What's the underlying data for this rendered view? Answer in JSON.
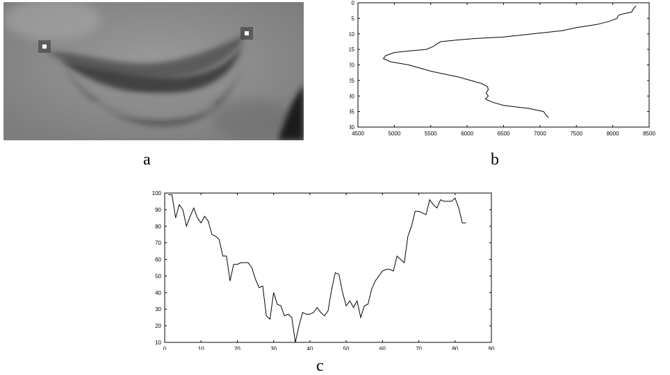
{
  "colors": {
    "line": "#000000",
    "axis": "#000000",
    "background": "#ffffff"
  },
  "panels": {
    "a": {
      "caption": "a",
      "content": "grayscale mouth image with two white marker points"
    },
    "b": {
      "caption": "b"
    },
    "c": {
      "caption": "c"
    }
  },
  "chart_data": [
    {
      "id": "b",
      "type": "line",
      "title": "",
      "xlabel": "",
      "ylabel": "",
      "xlim": [
        4500,
        8500
      ],
      "ylim": [
        0,
        40
      ],
      "y_inverted": true,
      "grid": false,
      "x_ticks": [
        4500,
        5000,
        5500,
        6000,
        6500,
        7000,
        7500,
        8000,
        8500
      ],
      "y_ticks": [
        0,
        5,
        10,
        15,
        20,
        25,
        30,
        35,
        40
      ],
      "series": [
        {
          "x": [
            8320,
            8280,
            8260,
            8150,
            8080,
            8060,
            7950,
            7780,
            7500,
            7300,
            7100,
            6900,
            6500,
            6100,
            5850,
            5640,
            5600,
            5540,
            5440,
            5200,
            5000,
            4880,
            4850,
            4950,
            5200,
            5500,
            5900,
            6200,
            6280,
            6290,
            6260,
            6290,
            6250,
            6350,
            6500,
            6850,
            7050,
            7080,
            7120
          ],
          "y": [
            1,
            2,
            3,
            3.5,
            4,
            5,
            6,
            7,
            8,
            9,
            9.5,
            10,
            11,
            11.5,
            12,
            12.5,
            13,
            14,
            15,
            15.5,
            16,
            17,
            18,
            19,
            20,
            22,
            24,
            26,
            27,
            28,
            29,
            30,
            31,
            32,
            33,
            34,
            35,
            36,
            37
          ]
        }
      ]
    },
    {
      "id": "c",
      "type": "line",
      "title": "",
      "xlabel": "",
      "ylabel": "",
      "xlim": [
        0,
        90
      ],
      "ylim": [
        10,
        100
      ],
      "grid": false,
      "x_ticks": [
        0,
        10,
        20,
        30,
        40,
        50,
        60,
        70,
        80,
        90
      ],
      "y_ticks": [
        10,
        20,
        30,
        40,
        50,
        60,
        70,
        80,
        90,
        100
      ],
      "series": [
        {
          "x": [
            1,
            2,
            3,
            4,
            5,
            6,
            7,
            8,
            9,
            10,
            11,
            12,
            13,
            14,
            15,
            16,
            17,
            18,
            19,
            20,
            21,
            22,
            23,
            24,
            25,
            26,
            27,
            28,
            29,
            30,
            31,
            32,
            33,
            34,
            35,
            36,
            37,
            38,
            39,
            40,
            41,
            42,
            43,
            44,
            45,
            46,
            47,
            48,
            49,
            50,
            51,
            52,
            53,
            54,
            55,
            56,
            57,
            58,
            59,
            60,
            61,
            62,
            63,
            64,
            65,
            66,
            67,
            68,
            69,
            70,
            71,
            72,
            73,
            74,
            75,
            76,
            77,
            78,
            79,
            80,
            81,
            82,
            83
          ],
          "y": [
            99,
            99,
            85,
            93,
            90,
            80,
            86,
            91,
            85,
            82,
            86,
            83,
            75,
            74,
            72,
            62,
            62,
            47,
            57,
            57,
            58,
            58,
            58,
            55,
            48,
            43,
            44,
            26,
            24,
            40,
            33,
            32,
            26,
            27,
            25,
            10,
            20,
            28,
            27,
            27,
            28,
            31,
            28,
            26,
            29,
            42,
            52,
            51,
            40,
            32,
            35,
            31,
            35,
            25,
            32,
            33,
            42,
            47,
            50,
            53,
            54,
            54,
            53,
            62,
            60,
            58,
            74,
            80,
            89,
            89,
            88,
            87,
            96,
            93,
            91,
            96,
            95,
            95,
            95,
            97,
            91,
            82,
            82
          ]
        }
      ]
    }
  ]
}
